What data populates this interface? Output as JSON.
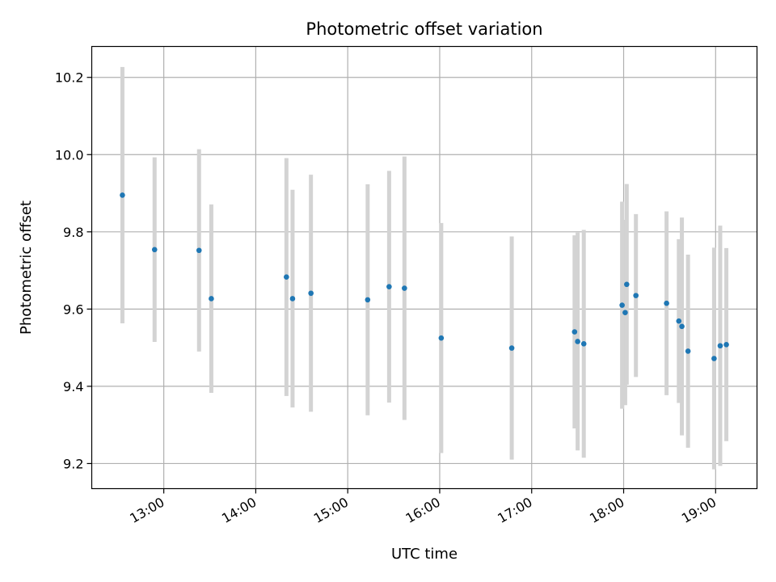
{
  "chart_data": {
    "type": "scatter",
    "title": "Photometric offset variation",
    "xlabel": "UTC time",
    "ylabel": "Photometric offset",
    "grid": true,
    "xlim": [
      "12:13",
      "19:27"
    ],
    "ylim": [
      9.135,
      10.28
    ],
    "x_ticks": [
      "13:00",
      "14:00",
      "15:00",
      "16:00",
      "17:00",
      "18:00",
      "19:00"
    ],
    "y_ticks": [
      9.2,
      9.4,
      9.6,
      9.8,
      10.0,
      10.2
    ],
    "y_tick_labels": [
      "9.2",
      "9.4",
      "9.6",
      "9.8",
      "10.0",
      "10.2"
    ],
    "colors": {
      "point": "#1f77b4",
      "errorbar": "#d3d3d3",
      "grid": "#b0b0b0"
    },
    "series": [
      {
        "points": [
          {
            "x": "12:33",
            "y": 9.895,
            "err": 0.332
          },
          {
            "x": "12:54",
            "y": 9.754,
            "err": 0.239
          },
          {
            "x": "13:23",
            "y": 9.752,
            "err": 0.262
          },
          {
            "x": "13:31",
            "y": 9.627,
            "err": 0.244
          },
          {
            "x": "14:20",
            "y": 9.683,
            "err": 0.308
          },
          {
            "x": "14:24",
            "y": 9.627,
            "err": 0.282
          },
          {
            "x": "14:36",
            "y": 9.641,
            "err": 0.307
          },
          {
            "x": "15:13",
            "y": 9.624,
            "err": 0.299
          },
          {
            "x": "15:27",
            "y": 9.658,
            "err": 0.3
          },
          {
            "x": "15:37",
            "y": 9.654,
            "err": 0.341
          },
          {
            "x": "16:01",
            "y": 9.525,
            "err": 0.298
          },
          {
            "x": "16:47",
            "y": 9.499,
            "err": 0.289
          },
          {
            "x": "17:28",
            "y": 9.541,
            "err": 0.25
          },
          {
            "x": "17:30",
            "y": 9.516,
            "err": 0.282
          },
          {
            "x": "17:34",
            "y": 9.51,
            "err": 0.295
          },
          {
            "x": "17:59",
            "y": 9.61,
            "err": 0.268
          },
          {
            "x": "18:01",
            "y": 9.591,
            "err": 0.24
          },
          {
            "x": "18:02",
            "y": 9.664,
            "err": 0.26
          },
          {
            "x": "18:08",
            "y": 9.635,
            "err": 0.211
          },
          {
            "x": "18:28",
            "y": 9.615,
            "err": 0.238
          },
          {
            "x": "18:36",
            "y": 9.569,
            "err": 0.212
          },
          {
            "x": "18:38",
            "y": 9.555,
            "err": 0.282
          },
          {
            "x": "18:42",
            "y": 9.491,
            "err": 0.25
          },
          {
            "x": "18:59",
            "y": 9.472,
            "err": 0.287
          },
          {
            "x": "19:03",
            "y": 9.505,
            "err": 0.311
          },
          {
            "x": "19:07",
            "y": 9.508,
            "err": 0.25
          }
        ]
      }
    ]
  }
}
